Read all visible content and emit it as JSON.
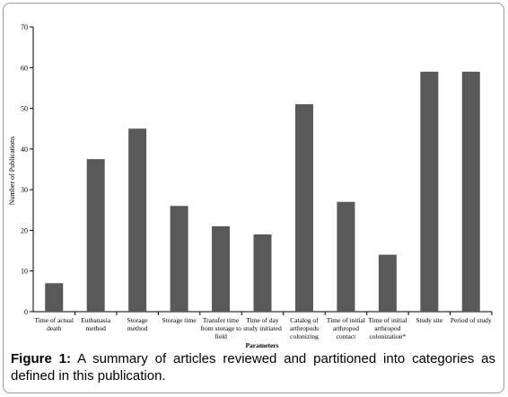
{
  "chart_data": {
    "type": "bar",
    "y_label": "Number of Publications",
    "x_label": "Parameters",
    "categories": [
      "Time of actual death",
      "Euthanasia method",
      "Storage method",
      "Storage time",
      "Transfer time from storage to field",
      "Time of day study initiated",
      "Catalog of arthropods colonizing",
      "Time of initial arthropod contact",
      "Time of initial arthropod colonization*",
      "Study site",
      "Period of study"
    ],
    "values": [
      7,
      37.5,
      45,
      26,
      21,
      19,
      51,
      27,
      14,
      59,
      59
    ],
    "color": "#595959",
    "ylim": [
      0,
      70
    ],
    "yticks": [
      0,
      10,
      20,
      30,
      40,
      50,
      60,
      70
    ]
  },
  "caption": {
    "label": "Figure 1:",
    "text": "A summary of articles reviewed and partitioned into categories as defined in this publication."
  }
}
